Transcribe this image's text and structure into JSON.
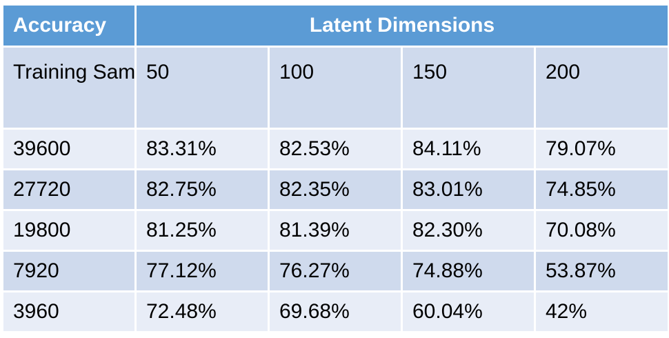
{
  "chart_data": {
    "type": "table",
    "corner_header": "Accuracy",
    "group_header": "Latent Dimensions",
    "row_header": "Training Samples",
    "columns": [
      "50",
      "100",
      "150",
      "200"
    ],
    "rows": [
      {
        "label": "39600",
        "values": [
          "83.31%",
          "82.53%",
          "84.11%",
          "79.07%"
        ]
      },
      {
        "label": "27720",
        "values": [
          "82.75%",
          "82.35%",
          "83.01%",
          "74.85%"
        ]
      },
      {
        "label": "19800",
        "values": [
          "81.25%",
          "81.39%",
          "82.30%",
          "70.08%"
        ]
      },
      {
        "label": "7920",
        "values": [
          "77.12%",
          "76.27%",
          "74.88%",
          "53.87%"
        ]
      },
      {
        "label": "3960",
        "values": [
          "72.48%",
          "69.68%",
          "60.04%",
          "42%"
        ]
      }
    ],
    "colors": {
      "header_bg": "#5b9bd5",
      "band_dark": "#cfdaed",
      "band_light": "#e8edf7"
    }
  }
}
